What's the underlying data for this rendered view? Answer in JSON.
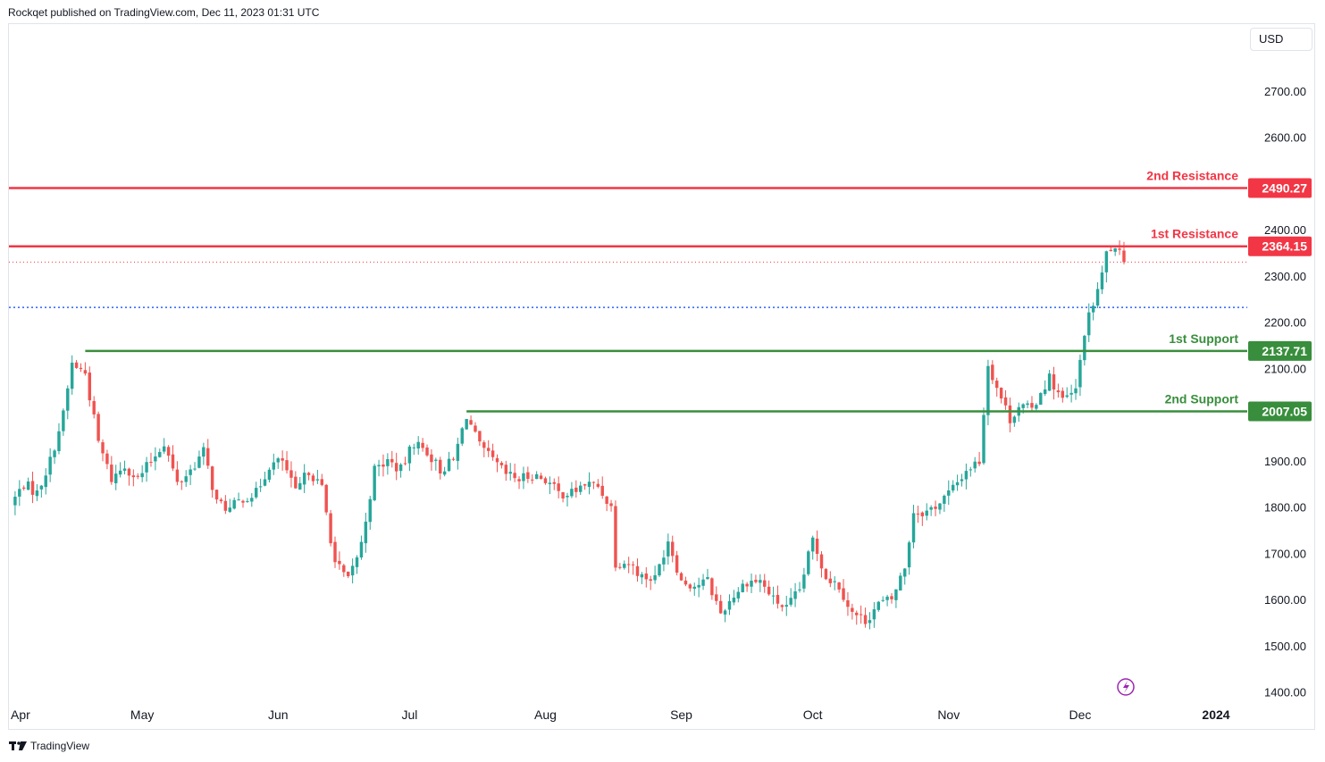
{
  "header": {
    "published": "Rockqet published on TradingView.com, Dec 11, 2023 01:31 UTC"
  },
  "currency": "USD",
  "footer": {
    "brand": "TradingView"
  },
  "colors": {
    "up": "#26a69a",
    "down": "#ef5350",
    "resistance": "#f23645",
    "support": "#388e3c",
    "dotted": "#2962ff"
  },
  "chart_data": {
    "type": "candlestick",
    "y_ticks": [
      "2700.00",
      "2600.00",
      "2400.00",
      "2300.00",
      "2200.00",
      "2100.00",
      "1900.00",
      "1800.00",
      "1700.00",
      "1600.00",
      "1500.00",
      "1400.00"
    ],
    "x_ticks": [
      {
        "label": "Apr",
        "date": "2023-04-01"
      },
      {
        "label": "May",
        "date": "2023-05-01"
      },
      {
        "label": "Jun",
        "date": "2023-06-01"
      },
      {
        "label": "Jul",
        "date": "2023-07-01"
      },
      {
        "label": "Aug",
        "date": "2023-08-01"
      },
      {
        "label": "Sep",
        "date": "2023-09-01"
      },
      {
        "label": "Oct",
        "date": "2023-10-01"
      },
      {
        "label": "Nov",
        "date": "2023-11-01"
      },
      {
        "label": "Dec",
        "date": "2023-12-01"
      },
      {
        "label": "2024",
        "date": "2024-01-01"
      }
    ],
    "ylim": [
      1370,
      2845
    ],
    "levels": [
      {
        "name": "2nd Resistance",
        "value": 2490.27,
        "tag": "2490.27",
        "kind": "resistance",
        "start": "full"
      },
      {
        "name": "1st Resistance",
        "value": 2364.15,
        "tag": "2364.15",
        "kind": "resistance",
        "start": "full"
      },
      {
        "name": "1st Support",
        "value": 2137.71,
        "tag": "2137.71",
        "kind": "support",
        "start": "2023-04-18"
      },
      {
        "name": "2nd Support",
        "value": 2007.05,
        "tag": "2007.05",
        "kind": "support",
        "start": "2023-07-14"
      }
    ],
    "dotted_lines": [
      {
        "value": 2232,
        "color": "#2962ff"
      },
      {
        "value": 2330,
        "color": "#f23645"
      }
    ],
    "closes": [
      [
        "2023-04-01",
        1805
      ],
      [
        "2023-04-04",
        1850
      ],
      [
        "2023-04-07",
        1830
      ],
      [
        "2023-04-10",
        1900
      ],
      [
        "2023-04-13",
        2000
      ],
      [
        "2023-04-15",
        2110
      ],
      [
        "2023-04-18",
        2090
      ],
      [
        "2023-04-21",
        1940
      ],
      [
        "2023-04-24",
        1860
      ],
      [
        "2023-04-27",
        1890
      ],
      [
        "2023-04-30",
        1860
      ],
      [
        "2023-05-03",
        1900
      ],
      [
        "2023-05-06",
        1940
      ],
      [
        "2023-05-09",
        1850
      ],
      [
        "2023-05-12",
        1880
      ],
      [
        "2023-05-15",
        1920
      ],
      [
        "2023-05-18",
        1810
      ],
      [
        "2023-05-21",
        1795
      ],
      [
        "2023-05-24",
        1820
      ],
      [
        "2023-05-27",
        1830
      ],
      [
        "2023-05-30",
        1890
      ],
      [
        "2023-06-02",
        1900
      ],
      [
        "2023-06-05",
        1830
      ],
      [
        "2023-06-08",
        1880
      ],
      [
        "2023-06-11",
        1840
      ],
      [
        "2023-06-14",
        1680
      ],
      [
        "2023-06-17",
        1640
      ],
      [
        "2023-06-20",
        1720
      ],
      [
        "2023-06-23",
        1880
      ],
      [
        "2023-06-26",
        1900
      ],
      [
        "2023-06-29",
        1880
      ],
      [
        "2023-07-02",
        1940
      ],
      [
        "2023-07-05",
        1920
      ],
      [
        "2023-07-08",
        1880
      ],
      [
        "2023-07-11",
        1900
      ],
      [
        "2023-07-14",
        2000
      ],
      [
        "2023-07-17",
        1930
      ],
      [
        "2023-07-20",
        1900
      ],
      [
        "2023-07-23",
        1870
      ],
      [
        "2023-07-26",
        1860
      ],
      [
        "2023-07-29",
        1870
      ],
      [
        "2023-08-01",
        1860
      ],
      [
        "2023-08-04",
        1830
      ],
      [
        "2023-08-07",
        1830
      ],
      [
        "2023-08-10",
        1850
      ],
      [
        "2023-08-13",
        1845
      ],
      [
        "2023-08-16",
        1800
      ],
      [
        "2023-08-17",
        1680
      ],
      [
        "2023-08-20",
        1680
      ],
      [
        "2023-08-23",
        1650
      ],
      [
        "2023-08-26",
        1645
      ],
      [
        "2023-08-29",
        1730
      ],
      [
        "2023-09-01",
        1640
      ],
      [
        "2023-09-04",
        1630
      ],
      [
        "2023-09-07",
        1640
      ],
      [
        "2023-09-10",
        1570
      ],
      [
        "2023-09-13",
        1610
      ],
      [
        "2023-09-16",
        1640
      ],
      [
        "2023-09-19",
        1640
      ],
      [
        "2023-09-22",
        1600
      ],
      [
        "2023-09-25",
        1580
      ],
      [
        "2023-09-28",
        1620
      ],
      [
        "2023-10-01",
        1730
      ],
      [
        "2023-10-04",
        1650
      ],
      [
        "2023-10-07",
        1630
      ],
      [
        "2023-10-10",
        1570
      ],
      [
        "2023-10-13",
        1555
      ],
      [
        "2023-10-16",
        1590
      ],
      [
        "2023-10-19",
        1600
      ],
      [
        "2023-10-22",
        1670
      ],
      [
        "2023-10-24",
        1790
      ],
      [
        "2023-10-27",
        1790
      ],
      [
        "2023-10-30",
        1810
      ],
      [
        "2023-11-02",
        1840
      ],
      [
        "2023-11-05",
        1880
      ],
      [
        "2023-11-08",
        1900
      ],
      [
        "2023-11-10",
        2110
      ],
      [
        "2023-11-12",
        2060
      ],
      [
        "2023-11-15",
        1990
      ],
      [
        "2023-11-17",
        2020
      ],
      [
        "2023-11-20",
        2010
      ],
      [
        "2023-11-22",
        2050
      ],
      [
        "2023-11-24",
        2080
      ],
      [
        "2023-11-27",
        2030
      ],
      [
        "2023-11-30",
        2050
      ],
      [
        "2023-12-02",
        2180
      ],
      [
        "2023-12-04",
        2240
      ],
      [
        "2023-12-06",
        2300
      ],
      [
        "2023-12-07",
        2350
      ],
      [
        "2023-12-08",
        2360
      ],
      [
        "2023-12-09",
        2350
      ],
      [
        "2023-12-10",
        2345
      ],
      [
        "2023-12-11",
        2330
      ]
    ]
  }
}
